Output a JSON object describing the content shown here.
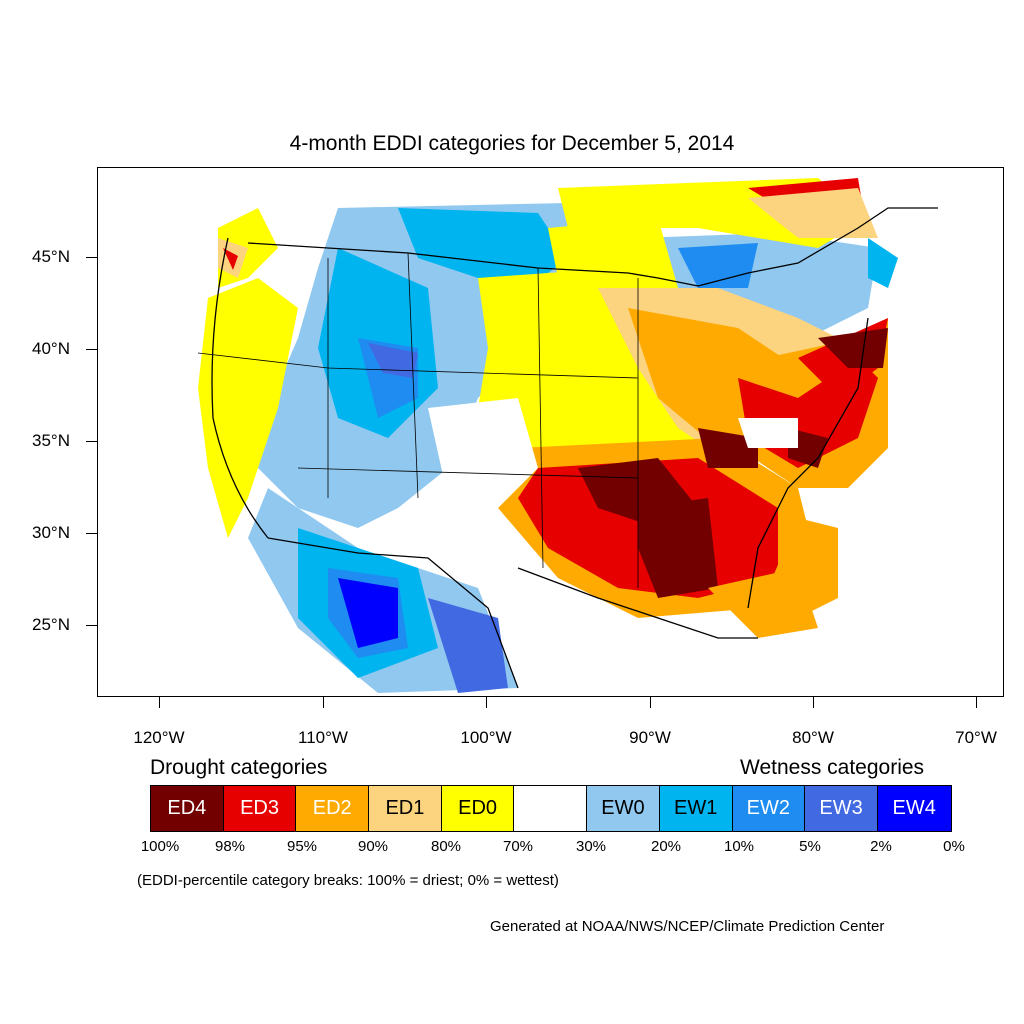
{
  "title": "4-month EDDI categories for December 5, 2014",
  "lat_labels": [
    "45°N",
    "40°N",
    "35°N",
    "30°N",
    "25°N"
  ],
  "lon_labels": [
    "120°W",
    "110°W",
    "100°W",
    "90°W",
    "80°W",
    "70°W"
  ],
  "legend": {
    "drought_title": "Drought categories",
    "wetness_title": "Wetness categories",
    "categories": [
      {
        "label": "ED4",
        "color": "#730000",
        "text_color": "#ffffff"
      },
      {
        "label": "ED3",
        "color": "#e60000",
        "text_color": "#ffffff"
      },
      {
        "label": "ED2",
        "color": "#ffaa00",
        "text_color": "#ffffff"
      },
      {
        "label": "ED1",
        "color": "#fcd37f",
        "text_color": "#000000"
      },
      {
        "label": "ED0",
        "color": "#ffff00",
        "text_color": "#000000"
      },
      {
        "label": "",
        "color": "#ffffff",
        "text_color": "#000000"
      },
      {
        "label": "EW0",
        "color": "#90c8f0",
        "text_color": "#000000"
      },
      {
        "label": "EW1",
        "color": "#00b4f0",
        "text_color": "#000000"
      },
      {
        "label": "EW2",
        "color": "#1e8cf0",
        "text_color": "#ffffff"
      },
      {
        "label": "EW3",
        "color": "#4169e1",
        "text_color": "#ffffff"
      },
      {
        "label": "EW4",
        "color": "#0000ff",
        "text_color": "#ffffff"
      }
    ],
    "percentiles": [
      "100%",
      "98%",
      "95%",
      "90%",
      "80%",
      "70%",
      "30%",
      "20%",
      "10%",
      "5%",
      "2%",
      "0%"
    ]
  },
  "note": "(EDDI-percentile category breaks: 100% = driest; 0% = wettest)",
  "credit": "Generated at NOAA/NWS/NCEP/Climate Prediction Center"
}
